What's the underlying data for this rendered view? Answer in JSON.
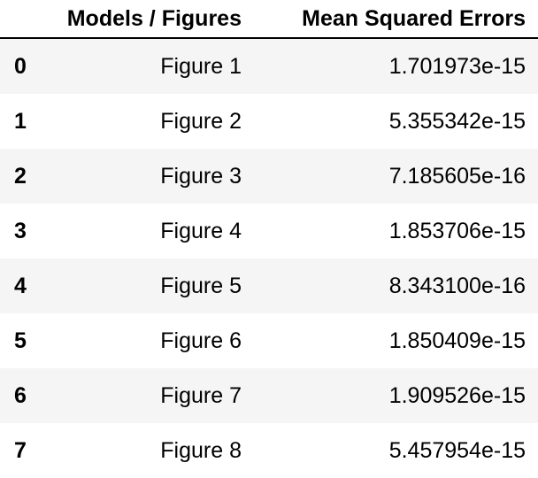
{
  "table": {
    "columns": [
      "",
      "Models / Figures",
      "Mean Squared Errors"
    ],
    "rows": [
      {
        "index": "0",
        "model": "Figure 1",
        "mse": "1.701973e-15"
      },
      {
        "index": "1",
        "model": "Figure 2",
        "mse": "5.355342e-15"
      },
      {
        "index": "2",
        "model": "Figure 3",
        "mse": "7.185605e-16"
      },
      {
        "index": "3",
        "model": "Figure 4",
        "mse": "1.853706e-15"
      },
      {
        "index": "4",
        "model": "Figure 5",
        "mse": "8.343100e-16"
      },
      {
        "index": "5",
        "model": "Figure 6",
        "mse": "1.850409e-15"
      },
      {
        "index": "6",
        "model": "Figure 7",
        "mse": "1.909526e-15"
      },
      {
        "index": "7",
        "model": "Figure 8",
        "mse": "5.457954e-15"
      }
    ]
  },
  "colors": {
    "stripe": "#f5f5f5",
    "background": "#ffffff",
    "text": "#000000"
  }
}
